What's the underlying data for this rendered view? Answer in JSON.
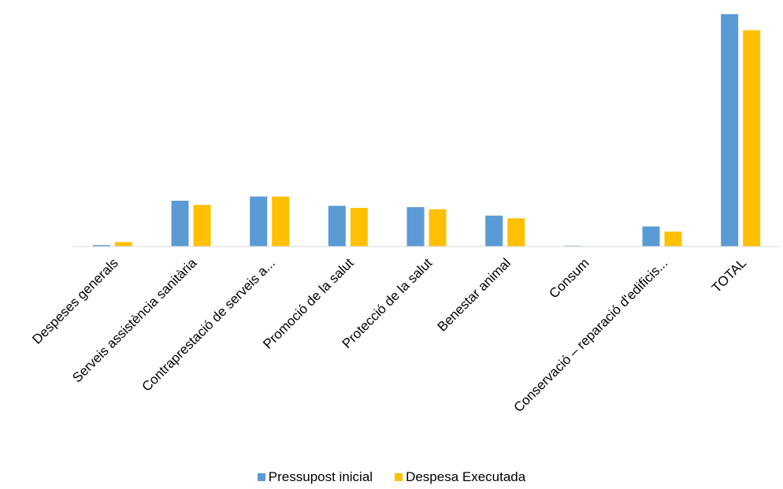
{
  "chart_data": {
    "type": "bar",
    "title": "",
    "xlabel": "",
    "ylabel": "",
    "ylim": [
      0,
      100
    ],
    "grid": false,
    "legend_position": "bottom",
    "categories": [
      "Despeses generals",
      "Serveis assistència sanitària",
      "Contraprestació de serveis a...",
      "Promoció de la salut",
      "Protecció de la salut",
      "Benestar animal",
      "Consum",
      "Conservació – reparació d'edificis...",
      "TOTAL"
    ],
    "series": [
      {
        "name": "Pressupost inicial",
        "color": "#5B9BD5",
        "values": [
          0.6,
          19.7,
          21.5,
          17.5,
          16.9,
          13.3,
          0.3,
          8.6,
          100
        ]
      },
      {
        "name": "Despesa Executada",
        "color": "#FFC000",
        "values": [
          1.9,
          17.9,
          21.5,
          16.6,
          16.0,
          12.1,
          0,
          6.4,
          93.1
        ]
      }
    ]
  }
}
